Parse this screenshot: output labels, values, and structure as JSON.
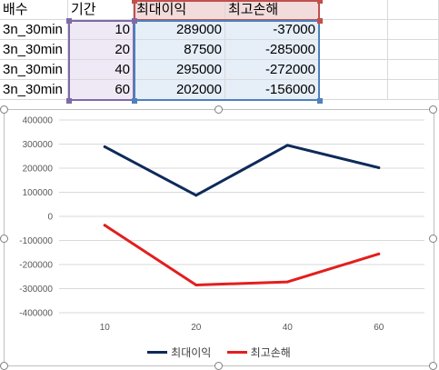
{
  "sheet": {
    "headers": [
      "배수",
      "기간",
      "최대이익",
      "최고손해"
    ],
    "rows": [
      {
        "multiplier": "3n_30min",
        "period": "10",
        "max_profit": "289000",
        "max_loss": "-37000"
      },
      {
        "multiplier": "3n_30min",
        "period": "20",
        "max_profit": "87500",
        "max_loss": "-285000"
      },
      {
        "multiplier": "3n_30min",
        "period": "40",
        "max_profit": "295000",
        "max_loss": "-272000"
      },
      {
        "multiplier": "3n_30min",
        "period": "60",
        "max_profit": "202000",
        "max_loss": "-156000"
      }
    ],
    "colors": {
      "purple_range": "#7f6aa8",
      "red_range": "#c0504d",
      "blue_range": "#4f81bd"
    }
  },
  "chart_data": {
    "type": "line",
    "categories": [
      "10",
      "20",
      "40",
      "60"
    ],
    "series": [
      {
        "name": "최대이익",
        "values": [
          289000,
          87500,
          295000,
          202000
        ],
        "color": "#0e2a5a"
      },
      {
        "name": "최고손해",
        "values": [
          -37000,
          -285000,
          -272000,
          -156000
        ],
        "color": "#e31e1e"
      }
    ],
    "y_ticks": [
      "400000",
      "300000",
      "200000",
      "100000",
      "0",
      "-100000",
      "-200000",
      "-300000",
      "-400000"
    ],
    "ylim": [
      -400000,
      400000
    ],
    "grid": true,
    "legend_position": "bottom"
  }
}
